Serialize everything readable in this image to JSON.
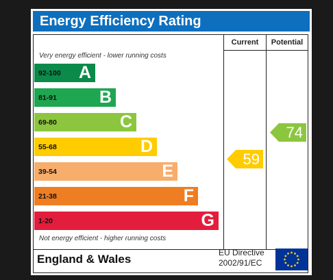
{
  "title": "Energy Efficiency Rating",
  "columns": {
    "current": "Current",
    "potential": "Potential"
  },
  "notes": {
    "top": "Very energy efficient - lower running costs",
    "bottom": "Not energy efficient - higher running costs"
  },
  "bands": [
    {
      "range": "92-100",
      "letter": "A",
      "color": "#0b8a4a"
    },
    {
      "range": "81-91",
      "letter": "B",
      "color": "#1fa650"
    },
    {
      "range": "69-80",
      "letter": "C",
      "color": "#8cc63f"
    },
    {
      "range": "55-68",
      "letter": "D",
      "color": "#ffcc00"
    },
    {
      "range": "39-54",
      "letter": "E",
      "color": "#f7ad6b"
    },
    {
      "range": "21-38",
      "letter": "F",
      "color": "#ef7d22"
    },
    {
      "range": "1-20",
      "letter": "G",
      "color": "#e31d3c"
    }
  ],
  "current": {
    "value": "59",
    "color": "#ffcc00"
  },
  "potential": {
    "value": "74",
    "color": "#8cc63f"
  },
  "footer": {
    "region": "England & Wales",
    "directive_line1": "EU Directive",
    "directive_line2": "2002/91/EC",
    "flag_color": "#003399",
    "star_color": "#ffcc00"
  }
}
